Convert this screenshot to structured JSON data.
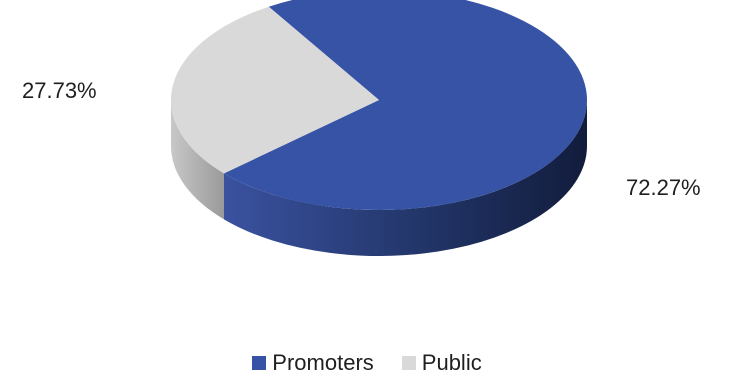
{
  "chart_data": {
    "type": "pie",
    "categories": [
      "Promoters",
      "Public"
    ],
    "values": [
      72.27,
      27.73
    ],
    "data_labels": [
      "72.27%",
      "27.73%"
    ],
    "colors": [
      "#3753a5",
      "#d9d9d9"
    ],
    "side_colors": [
      "#1e2e63",
      "#a6a6a6"
    ],
    "style": "3d",
    "legend": {
      "placement": "bottom",
      "entries": [
        {
          "label": "Promoters",
          "color": "#3753a5"
        },
        {
          "label": "Public",
          "color": "#d9d9d9"
        }
      ]
    }
  }
}
